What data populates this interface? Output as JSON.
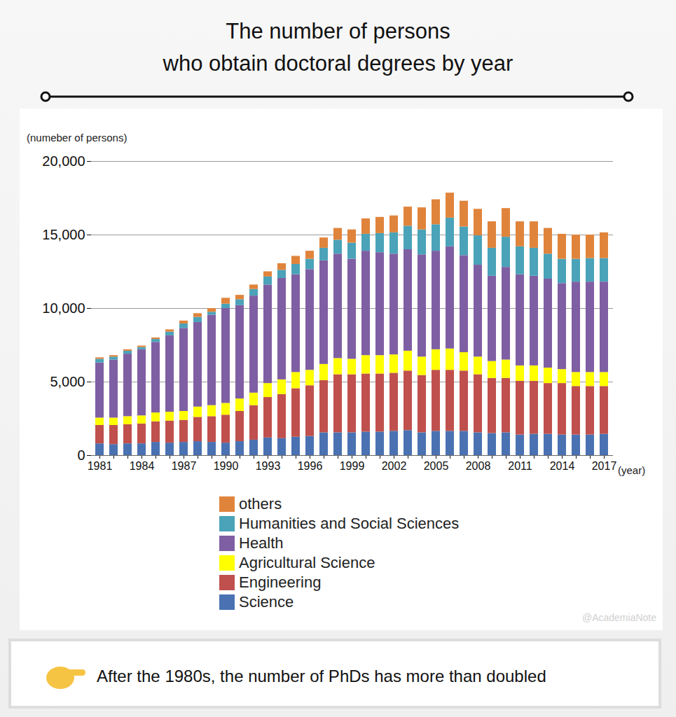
{
  "chart_data": {
    "type": "bar",
    "title": "The number of persons\nwho obtain doctoral degrees by year",
    "y_label": "(numeber of persons)",
    "x_label": "(year)",
    "annotations": [
      "After the 1980s, the number of PhDs has more than doubled",
      "@AcademiaNote"
    ],
    "categories": [
      "1981",
      null,
      null,
      "1984",
      null,
      null,
      "1987",
      null,
      null,
      "1990",
      null,
      null,
      "1993",
      null,
      null,
      "1996",
      null,
      null,
      "1999",
      null,
      null,
      "2002",
      null,
      null,
      "2005",
      null,
      null,
      "2008",
      null,
      null,
      "2011",
      null,
      null,
      "2014",
      null,
      null,
      "2017"
    ],
    "series": [
      {
        "name": "Science",
        "color": "#4a72b2",
        "values": [
          800,
          750,
          800,
          800,
          900,
          850,
          900,
          950,
          900,
          850,
          950,
          1050,
          1200,
          1150,
          1250,
          1300,
          1550,
          1550,
          1550,
          1600,
          1600,
          1650,
          1700,
          1550,
          1650,
          1650,
          1650,
          1550,
          1500,
          1550,
          1400,
          1450,
          1450,
          1400,
          1400,
          1400,
          1450
        ]
      },
      {
        "name": "Engineering",
        "color": "#c0504d",
        "values": [
          1250,
          1300,
          1300,
          1350,
          1400,
          1500,
          1500,
          1650,
          1750,
          1900,
          2050,
          2350,
          2750,
          3000,
          3300,
          3450,
          3550,
          3950,
          3950,
          3950,
          3950,
          3950,
          4050,
          3900,
          4150,
          4150,
          4100,
          3950,
          3750,
          3700,
          3650,
          3600,
          3450,
          3500,
          3300,
          3300,
          3250
        ]
      },
      {
        "name": "Agricultural Science",
        "color": "#ffff00",
        "values": [
          500,
          500,
          550,
          550,
          600,
          600,
          600,
          700,
          750,
          800,
          850,
          850,
          950,
          1000,
          1100,
          1050,
          1100,
          1100,
          1050,
          1250,
          1250,
          1250,
          1350,
          1250,
          1400,
          1450,
          1250,
          1200,
          1150,
          1250,
          1050,
          1050,
          1050,
          950,
          950,
          950,
          950
        ]
      },
      {
        "name": "Health",
        "color": "#7f5fa3",
        "values": [
          3750,
          3950,
          4250,
          4500,
          4800,
          5200,
          5650,
          5750,
          6150,
          6450,
          6350,
          6600,
          6700,
          6900,
          6650,
          6850,
          7050,
          7100,
          6800,
          7100,
          7000,
          6850,
          6900,
          6950,
          6700,
          6950,
          6600,
          6250,
          5800,
          6300,
          6200,
          6100,
          6050,
          5850,
          6150,
          6150,
          6150
        ]
      },
      {
        "name": "Humanities and Social Sciences",
        "color": "#4aa3b8",
        "values": [
          250,
          200,
          200,
          150,
          200,
          250,
          300,
          350,
          200,
          300,
          400,
          450,
          550,
          550,
          700,
          700,
          850,
          950,
          1100,
          1150,
          1300,
          1450,
          1600,
          1700,
          1800,
          1950,
          1950,
          2000,
          1900,
          2050,
          1900,
          1900,
          1700,
          1650,
          1550,
          1600,
          1600
        ]
      },
      {
        "name": "others",
        "color": "#e0843c",
        "values": [
          100,
          100,
          100,
          100,
          100,
          150,
          200,
          250,
          250,
          400,
          300,
          300,
          350,
          450,
          550,
          550,
          700,
          800,
          900,
          1050,
          1100,
          1150,
          1300,
          1500,
          1700,
          1700,
          1750,
          1800,
          1800,
          1950,
          1700,
          1800,
          1750,
          1700,
          1650,
          1600,
          1750
        ]
      }
    ],
    "ylim": [
      0,
      20000
    ],
    "yticks": [
      0,
      {
        "value": 5000,
        "label": "5,000"
      },
      {
        "value": 10000,
        "label": "10,000"
      },
      {
        "value": 15000,
        "label": "15,000"
      },
      {
        "value": 20000,
        "label": "20,000"
      }
    ],
    "grid": true,
    "stacked": true,
    "legend": "bottom"
  }
}
